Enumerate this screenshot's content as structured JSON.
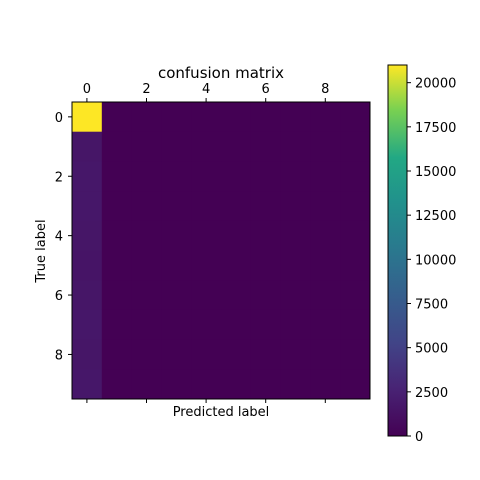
{
  "chart_data": {
    "type": "heatmap",
    "title": "confusion matrix",
    "xlabel": "Predicted label",
    "ylabel": "True label",
    "x_tick_labels": [
      "0",
      "2",
      "4",
      "6",
      "8"
    ],
    "y_tick_labels": [
      "0",
      "2",
      "4",
      "6",
      "8"
    ],
    "rows": 10,
    "cols": 10,
    "colormap": "viridis",
    "color_range": [
      0,
      21000
    ],
    "colorbar_ticks": [
      0,
      2500,
      5000,
      7500,
      10000,
      12500,
      15000,
      17500,
      20000
    ],
    "colorbar_tick_labels": [
      "0",
      "2500",
      "5000",
      "7500",
      "10000",
      "12500",
      "15000",
      "17500",
      "20000"
    ],
    "matrix": [
      [
        21000,
        0,
        0,
        0,
        0,
        0,
        0,
        0,
        0,
        0
      ],
      [
        1600,
        0,
        0,
        0,
        0,
        0,
        0,
        0,
        0,
        0
      ],
      [
        1700,
        0,
        0,
        0,
        0,
        0,
        0,
        0,
        0,
        0
      ],
      [
        1700,
        0,
        0,
        0,
        0,
        0,
        0,
        0,
        0,
        0
      ],
      [
        1600,
        0,
        0,
        0,
        0,
        0,
        0,
        0,
        0,
        0
      ],
      [
        1500,
        0,
        0,
        0,
        0,
        0,
        0,
        0,
        0,
        0
      ],
      [
        1600,
        0,
        0,
        0,
        0,
        0,
        0,
        0,
        0,
        0
      ],
      [
        1700,
        0,
        0,
        0,
        0,
        0,
        0,
        0,
        0,
        0
      ],
      [
        1600,
        0,
        0,
        0,
        0,
        0,
        0,
        0,
        0,
        0
      ],
      [
        1700,
        0,
        0,
        0,
        0,
        0,
        0,
        0,
        0,
        0
      ]
    ]
  }
}
